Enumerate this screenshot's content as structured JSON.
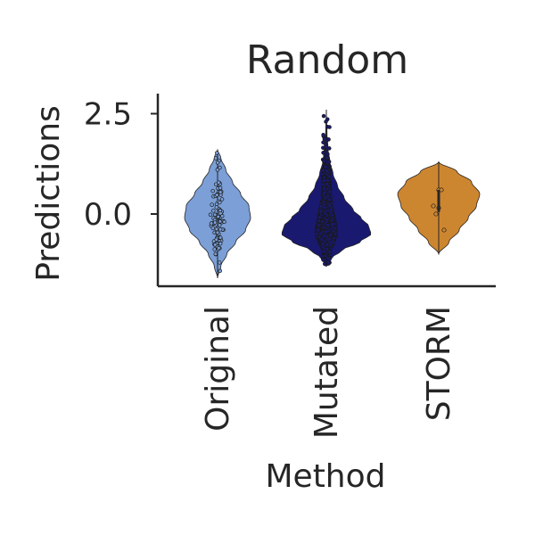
{
  "chart_data": {
    "type": "violin",
    "title": "Random",
    "xlabel": "Method",
    "ylabel": "Predictions",
    "categories": [
      "Original",
      "Mutated",
      "STORM"
    ],
    "ylim": [
      -1.8,
      3.0
    ],
    "yticks": [
      0.0,
      2.5
    ],
    "ytick_labels": [
      "0.0",
      "2.5"
    ],
    "grid": false,
    "legend": "none",
    "series": [
      {
        "category": "Original",
        "color": "#7b9fd6",
        "range": [
          -1.6,
          1.6
        ],
        "median": 0.1,
        "n_points": 90,
        "density_profile": [
          [
            -1.6,
            0.0
          ],
          [
            -1.3,
            0.1
          ],
          [
            -1.0,
            0.28
          ],
          [
            -0.7,
            0.55
          ],
          [
            -0.4,
            0.85
          ],
          [
            -0.1,
            1.0
          ],
          [
            0.2,
            0.95
          ],
          [
            0.5,
            0.7
          ],
          [
            0.8,
            0.45
          ],
          [
            1.1,
            0.25
          ],
          [
            1.4,
            0.1
          ],
          [
            1.6,
            0.0
          ]
        ]
      },
      {
        "category": "Mutated",
        "color": "#191970",
        "range": [
          -1.3,
          2.6
        ],
        "median": 0.0,
        "n_points": 1500,
        "density_profile": [
          [
            -1.3,
            0.0
          ],
          [
            -1.1,
            0.12
          ],
          [
            -0.9,
            0.35
          ],
          [
            -0.7,
            0.75
          ],
          [
            -0.5,
            1.0
          ],
          [
            -0.3,
            0.95
          ],
          [
            -0.1,
            0.78
          ],
          [
            0.1,
            0.6
          ],
          [
            0.4,
            0.4
          ],
          [
            0.7,
            0.25
          ],
          [
            1.0,
            0.15
          ],
          [
            1.3,
            0.08
          ],
          [
            1.6,
            0.04
          ],
          [
            2.0,
            0.015
          ],
          [
            2.6,
            0.0
          ]
        ]
      },
      {
        "category": "STORM",
        "color": "#cd8630",
        "range": [
          -1.0,
          1.3
        ],
        "median": 0.2,
        "points": [
          0.6,
          0.6,
          0.2,
          0.15,
          0.0,
          -0.4
        ],
        "density_profile": [
          [
            -1.0,
            0.0
          ],
          [
            -0.7,
            0.25
          ],
          [
            -0.4,
            0.5
          ],
          [
            -0.1,
            0.72
          ],
          [
            0.2,
            0.92
          ],
          [
            0.5,
            1.0
          ],
          [
            0.8,
            0.8
          ],
          [
            1.05,
            0.45
          ],
          [
            1.3,
            0.0
          ]
        ]
      }
    ]
  }
}
